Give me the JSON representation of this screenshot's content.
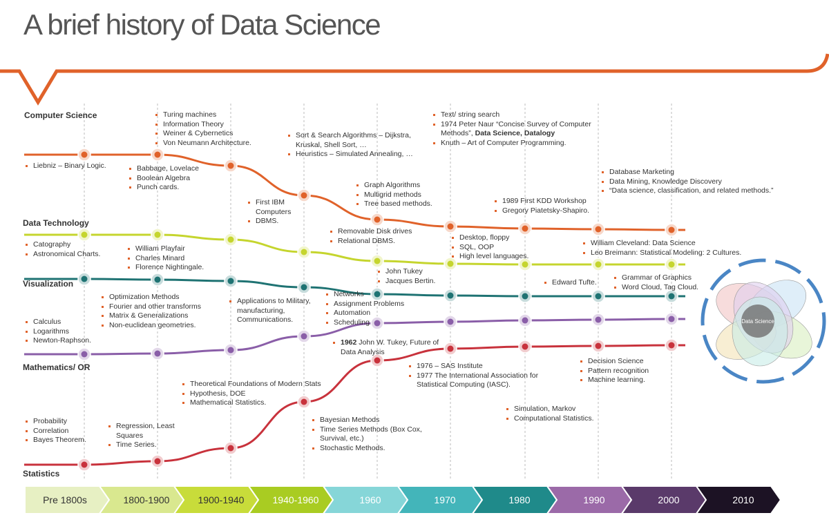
{
  "title": "A brief history of Data Science",
  "tracks": [
    {
      "name": "Computer Science",
      "color": "#e0622a"
    },
    {
      "name": "Data Technology",
      "color": "#c5d52e"
    },
    {
      "name": "Visualization",
      "color": "#1f7373"
    },
    {
      "name": "Mathematics/ OR",
      "color": "#8a5ea8"
    },
    {
      "name": "Statistics",
      "color": "#c8323c"
    }
  ],
  "notes": [
    {
      "items": [
        "Turing machines",
        "Information Theory",
        "Weiner & Cybernetics",
        "Von Neumann Architecture."
      ]
    },
    {
      "items": [
        "Sort & Search Algorithms – Dijkstra, Kruskal, Shell Sort, …",
        "Heuristics – Simulated Annealing, …"
      ]
    },
    {
      "items": [
        "Text/ string search",
        [
          {
            "text": "1974 Peter Naur “Concise Survey of Computer Methods”, "
          },
          {
            "text": "Data Science, Datalogy",
            "bold": true
          }
        ],
        "Knuth – Art of Computer Programming."
      ]
    },
    {
      "items": [
        "Liebniz – Binary Logic."
      ]
    },
    {
      "items": [
        "Babbage, Lovelace",
        "Boolean Algebra",
        "Punch cards."
      ]
    },
    {
      "items": [
        "First IBM Computers",
        "DBMS."
      ]
    },
    {
      "items": [
        "Graph Algorithms",
        "Multigrid methods",
        "Tree based methods."
      ]
    },
    {
      "items": [
        "1989 First KDD Workshop",
        "Gregory Piatetsky-Shapiro."
      ]
    },
    {
      "items": [
        "Database Marketing",
        "Data Mining, Knowledge Discovery",
        "“Data science, classification, and related methods.”"
      ]
    },
    {
      "items": [
        "Catography",
        "Astronomical Charts."
      ]
    },
    {
      "items": [
        "William Playfair",
        "Charles Minard",
        "Florence Nightingale."
      ]
    },
    {
      "items": [
        "Removable Disk drives",
        "Relational DBMS."
      ]
    },
    {
      "items": [
        "Desktop, floppy",
        "SQL, OOP",
        "High level languages."
      ]
    },
    {
      "items": [
        "William Cleveland: Data Science",
        "Leo Breimann: Statistical Modeling: 2 Cultures."
      ]
    },
    {
      "items": [
        "John Tukey",
        "Jacques Bertin."
      ]
    },
    {
      "items": [
        "Edward Tufte."
      ]
    },
    {
      "items": [
        "Grammar of Graphics",
        "Word Cloud, Tag Cloud."
      ]
    },
    {
      "items": [
        "Optimization Methods",
        "Fourier and other transforms",
        "Matrix & Generalizations",
        "Non-euclidean geometries."
      ]
    },
    {
      "items": [
        "Applications to Military, manufacturing, Communications."
      ]
    },
    {
      "items": [
        "Networks",
        "Assignment Problems",
        "Automation",
        "Scheduling"
      ]
    },
    {
      "items": [
        "Calculus",
        "Logarithms",
        "Newton-Raphson."
      ]
    },
    {
      "items": [
        [
          {
            "text": "1962",
            "bold": true
          },
          {
            "text": " John W. Tukey, Future of Data Analysis"
          }
        ]
      ]
    },
    {
      "items": [
        "1976 – SAS Institute",
        "1977 The International Association for Statistical Computing (IASC)."
      ]
    },
    {
      "items": [
        "Decision Science",
        "Pattern recognition",
        "Machine learning."
      ]
    },
    {
      "items": [
        "Theoretical Foundations of Modern Stats",
        "Hypothesis, DOE",
        "Mathematical Statistics."
      ]
    },
    {
      "items": [
        "Simulation, Markov",
        "Computational Statistics."
      ]
    },
    {
      "items": [
        "Bayesian Methods",
        "Time Series Methods (Box Cox, Survival, etc.)",
        "Stochastic Methods."
      ]
    },
    {
      "items": [
        "Probability",
        "Correlation",
        "Bayes Theorem."
      ]
    },
    {
      "items": [
        "Regression, Least Squares",
        "Time Series."
      ]
    }
  ],
  "figure_label": "Data Science",
  "periods": [
    {
      "label": "Pre 1800s",
      "color": "#e7f0c3"
    },
    {
      "label": "1800-1900",
      "color": "#d9e88f"
    },
    {
      "label": "1900-1940",
      "color": "#c8dc3a"
    },
    {
      "label": "1940-1960",
      "color": "#a9cc22"
    },
    {
      "label": "1960",
      "color": "#86d6d8"
    },
    {
      "label": "1970",
      "color": "#43b5ba"
    },
    {
      "label": "1980",
      "color": "#1f8a8a"
    },
    {
      "label": "1990",
      "color": "#9b6aa8"
    },
    {
      "label": "2000",
      "color": "#5a3a6a"
    },
    {
      "label": "2010",
      "color": "#1c1224"
    }
  ]
}
